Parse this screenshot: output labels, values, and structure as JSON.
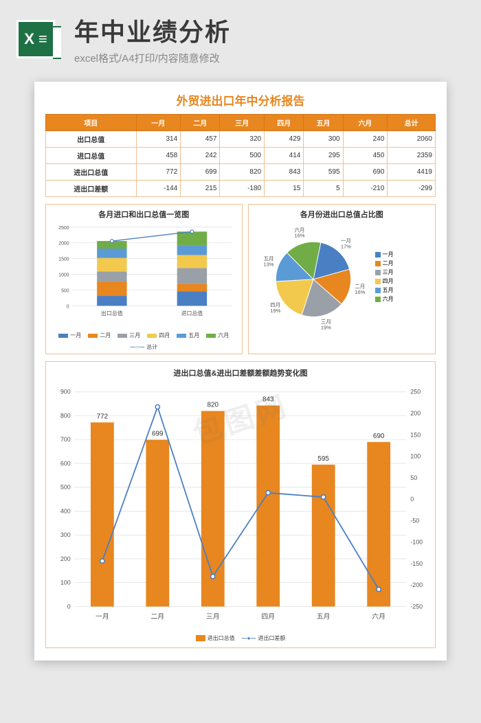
{
  "header": {
    "icon_bg": "#1e7145",
    "icon_text": "X ≡",
    "title": "年中业绩分析",
    "subtitle": "excel格式/A4打印/内容随意修改"
  },
  "watermark": "包图网",
  "report": {
    "title": "外贸进出口年中分析报告",
    "accent_color": "#e8861f",
    "columns": [
      "项目",
      "一月",
      "二月",
      "三月",
      "四月",
      "五月",
      "六月",
      "总计"
    ],
    "rows": [
      {
        "label": "出口总值",
        "vals": [
          314,
          457,
          320,
          429,
          300,
          240,
          2060
        ]
      },
      {
        "label": "进口总值",
        "vals": [
          458,
          242,
          500,
          414,
          295,
          450,
          2359
        ]
      },
      {
        "label": "进出口总值",
        "vals": [
          772,
          699,
          820,
          843,
          595,
          690,
          4419
        ]
      },
      {
        "label": "进出口差额",
        "vals": [
          -144,
          215,
          -180,
          15,
          5,
          -210,
          -299
        ]
      }
    ]
  },
  "months": [
    "一月",
    "二月",
    "三月",
    "四月",
    "五月",
    "六月"
  ],
  "month_colors": [
    "#4a7fc4",
    "#e8861f",
    "#9aa0a8",
    "#f2c94c",
    "#5b9bd5",
    "#70ad47"
  ],
  "stacked_chart": {
    "title": "各月进口和出口总值一览图",
    "categories": [
      "出口总值",
      "进口总值"
    ],
    "series": [
      {
        "name": "一月",
        "vals": [
          314,
          458
        ]
      },
      {
        "name": "二月",
        "vals": [
          457,
          242
        ]
      },
      {
        "name": "三月",
        "vals": [
          320,
          500
        ]
      },
      {
        "name": "四月",
        "vals": [
          429,
          414
        ]
      },
      {
        "name": "五月",
        "vals": [
          300,
          295
        ]
      },
      {
        "name": "六月",
        "vals": [
          240,
          450
        ]
      }
    ],
    "totals": [
      2060,
      2359
    ],
    "ymax": 2500,
    "ytick": 500,
    "grid_color": "#d8d8d8",
    "line_color": "#4a7fc4"
  },
  "pie_chart": {
    "title": "各月份进出口总值占比图",
    "slices": [
      {
        "name": "一月",
        "value": 772,
        "pct": 17
      },
      {
        "name": "二月",
        "value": 699,
        "pct": 16
      },
      {
        "name": "三月",
        "value": 820,
        "pct": 19
      },
      {
        "name": "四月",
        "value": 843,
        "pct": 19
      },
      {
        "name": "五月",
        "value": 595,
        "pct": 13
      },
      {
        "name": "六月",
        "value": 690,
        "pct": 16
      }
    ]
  },
  "combo_chart": {
    "title": "进出口总值&进出口差额差额趋势变化图",
    "categories": [
      "一月",
      "二月",
      "三月",
      "四月",
      "五月",
      "六月"
    ],
    "bars": {
      "name": "进出口总值",
      "color": "#e8861f",
      "vals": [
        772,
        699,
        820,
        843,
        595,
        690
      ]
    },
    "line": {
      "name": "进出口差额",
      "color": "#4a7fc4",
      "vals": [
        -144,
        215,
        -180,
        15,
        5,
        -210
      ]
    },
    "y_left": {
      "min": 0,
      "max": 900,
      "step": 100
    },
    "y_right": {
      "min": -250,
      "max": 250,
      "step": 50
    },
    "grid_color": "#d8d8d8"
  }
}
